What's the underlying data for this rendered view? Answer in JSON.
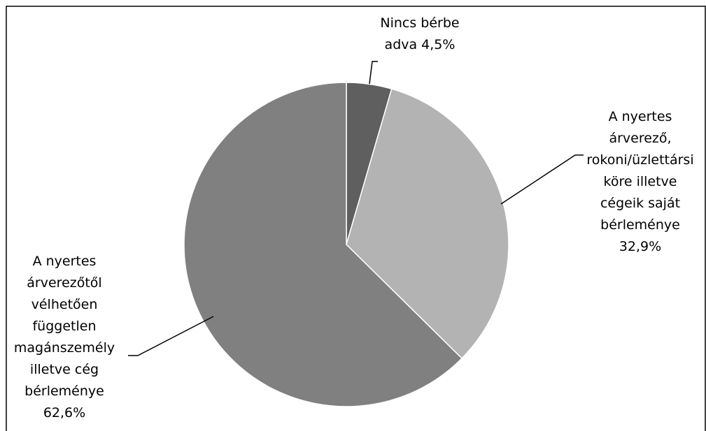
{
  "chart_data": {
    "type": "pie",
    "title": "",
    "slices": [
      {
        "label_lines": [
          "Nincs bérbe",
          "adva 4,5%"
        ],
        "value": 4.5,
        "color": "#5f5f5f"
      },
      {
        "label_lines": [
          "A nyertes",
          "árverező,",
          "rokoni/üzlettársi",
          "köre illetve",
          "cégeik saját",
          "bérleménye",
          "32,9%"
        ],
        "value": 32.9,
        "color": "#b3b3b3"
      },
      {
        "label_lines": [
          "A nyertes",
          "árverezőtől",
          "vélhetően",
          "független",
          "magánszemély",
          "illetve cég",
          "bérleménye",
          "62,6%"
        ],
        "value": 62.6,
        "color": "#808080"
      }
    ],
    "start_angle_deg": 0,
    "direction": "clockwise",
    "legend": "none"
  }
}
